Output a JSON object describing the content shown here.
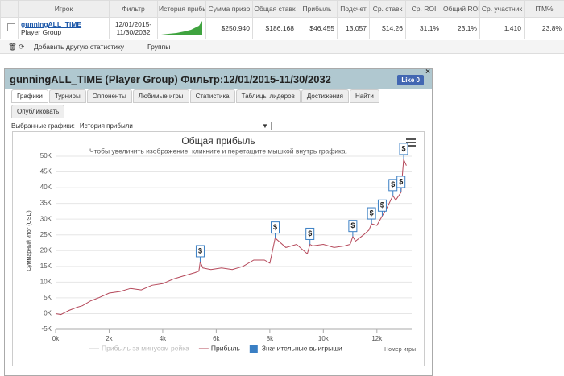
{
  "table": {
    "headers": [
      "Игрок",
      "Фильтр",
      "История прибы",
      "Сумма призо",
      "Общая ставк",
      "Прибыль",
      "Подсчет",
      "Ср. ставк",
      "Ср. ROI",
      "Общий ROI",
      "Ср. участник",
      "ITM%"
    ],
    "row": {
      "player": "gunningALL_TIME",
      "group": "Player Group",
      "filter": [
        "12/01/2015-",
        "11/30/2032"
      ],
      "stats": [
        "$250,940",
        "$186,168",
        "$46,455",
        "13,057",
        "$14.26",
        "31.1%",
        "23.1%",
        "1,410",
        "23.8%"
      ]
    }
  },
  "toolbar": {
    "add": "Добавить другую статистику",
    "groups": "Группы"
  },
  "panel": {
    "title": "gunningALL_TIME (Player Group) Фильтр:12/01/2015-11/30/2032",
    "like": "Like 0",
    "tabs": [
      "Графики",
      "Турниры",
      "Оппоненты",
      "Любимые игры",
      "Статистика",
      "Таблицы лидеров",
      "Достижения",
      "Найти",
      "Опубликовать"
    ],
    "select_label": "Выбранные графики:",
    "select_value": "История прибыли"
  },
  "chart_data": {
    "type": "line",
    "title": "Общая прибыль",
    "subtitle": "Чтобы увеличить изображение, кликните и перетащите мышкой внутрь графика.",
    "x_label": "Номер игры",
    "y_label": "Суммарный итог (USD)",
    "x": [
      0,
      200,
      500,
      800,
      1000,
      1300,
      1600,
      2000,
      2400,
      2800,
      3200,
      3600,
      4000,
      4400,
      4800,
      5200,
      5350,
      5400,
      5500,
      5800,
      6200,
      6600,
      7000,
      7400,
      7800,
      8000,
      8100,
      8200,
      8600,
      9000,
      9400,
      9500,
      9600,
      10000,
      10400,
      10800,
      11000,
      11100,
      11200,
      11500,
      11700,
      11800,
      12000,
      12200,
      12400,
      12600,
      12700,
      12900,
      13000,
      13100
    ],
    "series": [
      {
        "color": "#b5485a",
        "values": [
          0,
          -300,
          1000,
          2000,
          2500,
          4000,
          5000,
          6500,
          7000,
          8000,
          7500,
          9000,
          9500,
          11000,
          12000,
          13000,
          13500,
          16500,
          14500,
          14000,
          14500,
          14000,
          15000,
          17000,
          17000,
          16000,
          20000,
          24000,
          21000,
          22000,
          19000,
          22000,
          21500,
          22000,
          21000,
          21500,
          22000,
          24500,
          23000,
          25000,
          26500,
          28500,
          28000,
          31000,
          34000,
          37500,
          36000,
          38500,
          49000,
          47000
        ]
      }
    ],
    "wins": {
      "label": "$",
      "color": "#3a7fc4",
      "x": [
        5400,
        8200,
        9500,
        11100,
        11800,
        12200,
        12600,
        12900,
        13000
      ],
      "y": [
        16500,
        24000,
        22000,
        24500,
        28500,
        31000,
        37500,
        38500,
        49000
      ]
    },
    "legend": [
      {
        "name": "Прибыль за минусом рейка",
        "color": "#cccccc",
        "symbol": "line"
      },
      {
        "name": "Прибыль",
        "color": "#b5485a",
        "symbol": "line"
      },
      {
        "name": "Значительные выигрыши",
        "color": "#3a7fc4",
        "symbol": "square"
      }
    ],
    "xlim": [
      0,
      13300
    ],
    "ylim": [
      -5000,
      50000
    ],
    "xticks": [
      {
        "value": 0,
        "label": "0k"
      },
      {
        "value": 2000,
        "label": "2k"
      },
      {
        "value": 4000,
        "label": "4k"
      },
      {
        "value": 6000,
        "label": "6k"
      },
      {
        "value": 8000,
        "label": "8k"
      },
      {
        "value": 10000,
        "label": "10k"
      },
      {
        "value": 12000,
        "label": "12k"
      }
    ],
    "yticks": [
      {
        "value": -5000,
        "label": "-5K"
      },
      {
        "value": 0,
        "label": "0K"
      },
      {
        "value": 5000,
        "label": "5K"
      },
      {
        "value": 10000,
        "label": "10K"
      },
      {
        "value": 15000,
        "label": "15K"
      },
      {
        "value": 20000,
        "label": "20K"
      },
      {
        "value": 25000,
        "label": "25K"
      },
      {
        "value": 30000,
        "label": "30K"
      },
      {
        "value": 35000,
        "label": "35K"
      },
      {
        "value": 40000,
        "label": "40K"
      },
      {
        "value": 45000,
        "label": "45K"
      },
      {
        "value": 50000,
        "label": "50K"
      }
    ]
  }
}
